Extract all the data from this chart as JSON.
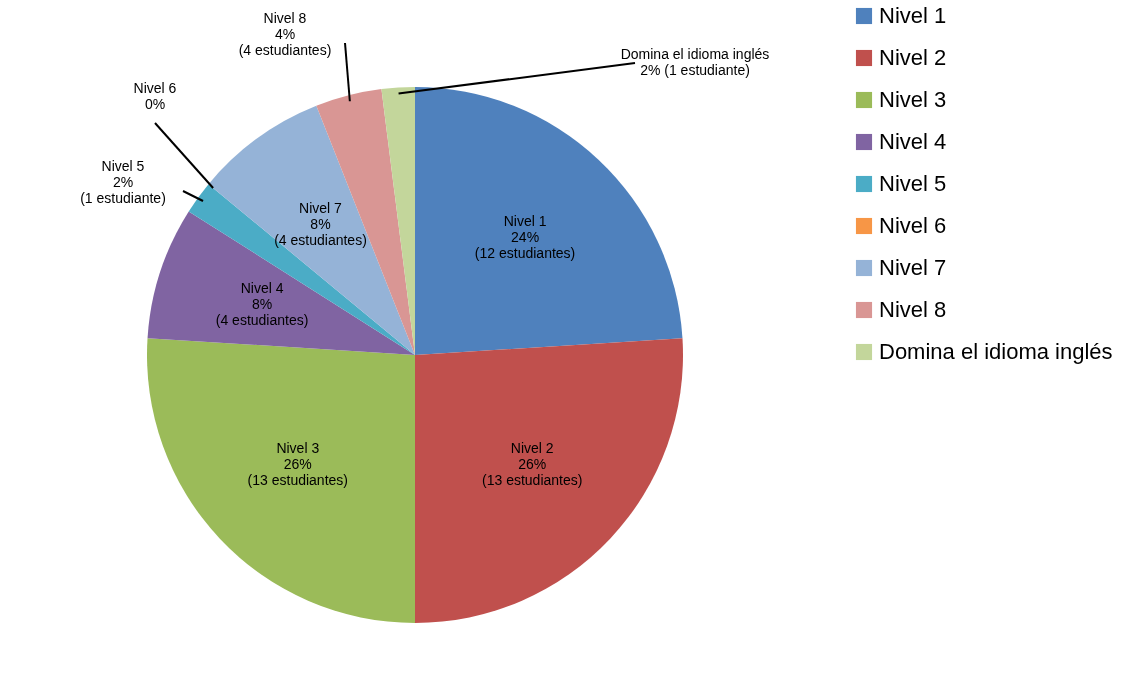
{
  "chart_data": {
    "type": "pie",
    "categories": [
      "Nivel 1",
      "Nivel 2",
      "Nivel 3",
      "Nivel 4",
      "Nivel 5",
      "Nivel 6",
      "Nivel 7",
      "Nivel 8",
      "Domina el idioma inglés"
    ],
    "values": [
      24,
      26,
      26,
      8,
      2,
      0,
      8,
      4,
      2
    ],
    "colors": [
      "#4f81bd",
      "#c0504d",
      "#9bbb59",
      "#8064a2",
      "#4bacc6",
      "#f79646",
      "#95b3d7",
      "#d99694",
      "#c3d69b"
    ],
    "value_labels": [
      "Nivel 1\n24%\n(12 estudiantes)",
      "Nivel 2\n26%\n(13 estudiantes)",
      "Nivel 3\n26%\n(13 estudiantes)",
      "Nivel 4\n8%\n(4 estudiantes)",
      "Nivel 5\n2%\n(1 estudiante)",
      "Nivel 6\n0%",
      "Nivel 7\n8%\n(4 estudiantes)",
      "Nivel 8\n4%\n(4 estudiantes)",
      "Domina el idioma inglés\n2%  (1 estudiante)"
    ],
    "legend": "right"
  }
}
